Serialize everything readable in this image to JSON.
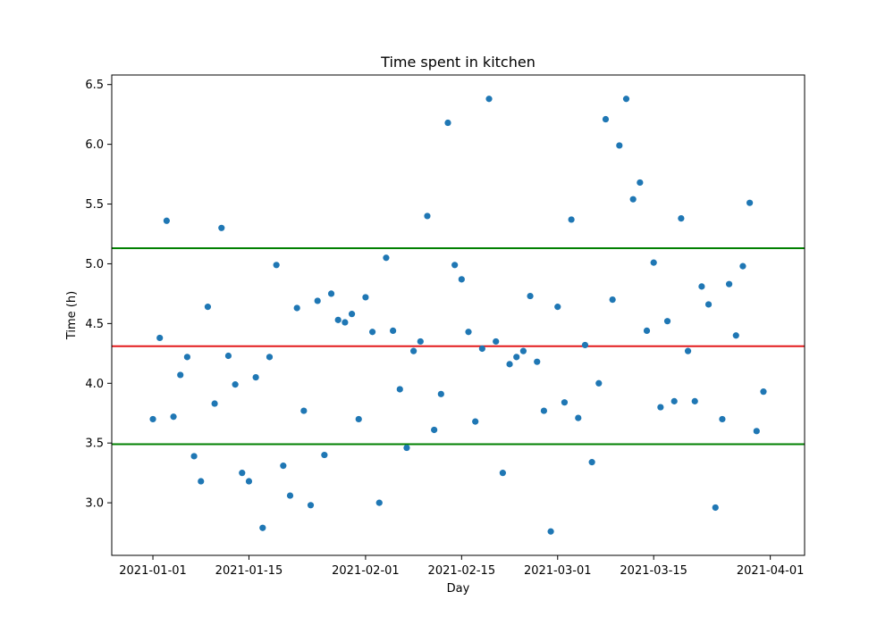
{
  "chart_data": {
    "type": "scatter",
    "title": "Time spent in kitchen",
    "xlabel": "Day",
    "ylabel": "Time (h)",
    "x_axis_type": "date",
    "xlim": [
      "2020-12-26",
      "2021-04-06"
    ],
    "ylim": [
      2.56,
      6.58
    ],
    "x_ticks": [
      "2021-01-01",
      "2021-01-15",
      "2021-02-01",
      "2021-02-15",
      "2021-03-01",
      "2021-03-15",
      "2021-04-01"
    ],
    "x_tick_labels": [
      "2021-01-01",
      "2021-01-15",
      "2021-02-01",
      "2021-02-15",
      "2021-03-01",
      "2021-03-15",
      "2021-04-01"
    ],
    "y_ticks": [
      3.0,
      3.5,
      4.0,
      4.5,
      5.0,
      5.5,
      6.0,
      6.5
    ],
    "y_tick_labels": [
      "3.0",
      "3.5",
      "4.0",
      "4.5",
      "5.0",
      "5.5",
      "6.0",
      "6.5"
    ],
    "grid": false,
    "colors": {
      "points": "#1f77b4",
      "mean_line": "#d62728",
      "bound_lines": "#008000"
    },
    "horizontal_lines": [
      {
        "y": 5.13,
        "color": "#008000"
      },
      {
        "y": 4.31,
        "color": "#e31a1c"
      },
      {
        "y": 3.49,
        "color": "#008000"
      }
    ],
    "series": [
      {
        "x": [
          "2021-01-01",
          "2021-01-02",
          "2021-01-03",
          "2021-01-04",
          "2021-01-05",
          "2021-01-06",
          "2021-01-07",
          "2021-01-08",
          "2021-01-09",
          "2021-01-10",
          "2021-01-11",
          "2021-01-12",
          "2021-01-13",
          "2021-01-14",
          "2021-01-15",
          "2021-01-16",
          "2021-01-17",
          "2021-01-18",
          "2021-01-19",
          "2021-01-20",
          "2021-01-21",
          "2021-01-22",
          "2021-01-23",
          "2021-01-24",
          "2021-01-25",
          "2021-01-26",
          "2021-01-27",
          "2021-01-28",
          "2021-01-29",
          "2021-01-30",
          "2021-01-31",
          "2021-02-01",
          "2021-02-02",
          "2021-02-03",
          "2021-02-04",
          "2021-02-05",
          "2021-02-06",
          "2021-02-07",
          "2021-02-08",
          "2021-02-09",
          "2021-02-10",
          "2021-02-11",
          "2021-02-12",
          "2021-02-13",
          "2021-02-14",
          "2021-02-15",
          "2021-02-16",
          "2021-02-17",
          "2021-02-18",
          "2021-02-19",
          "2021-02-20",
          "2021-02-21",
          "2021-02-22",
          "2021-02-23",
          "2021-02-24",
          "2021-02-25",
          "2021-02-26",
          "2021-02-27",
          "2021-02-28",
          "2021-03-01",
          "2021-03-02",
          "2021-03-03",
          "2021-03-04",
          "2021-03-05",
          "2021-03-06",
          "2021-03-07",
          "2021-03-08",
          "2021-03-09",
          "2021-03-10",
          "2021-03-11",
          "2021-03-12",
          "2021-03-13",
          "2021-03-14",
          "2021-03-15",
          "2021-03-16",
          "2021-03-17",
          "2021-03-18",
          "2021-03-19",
          "2021-03-20",
          "2021-03-21",
          "2021-03-22",
          "2021-03-23",
          "2021-03-24",
          "2021-03-25",
          "2021-03-26",
          "2021-03-27",
          "2021-03-28",
          "2021-03-29",
          "2021-03-30",
          "2021-03-31"
        ],
        "y": [
          3.7,
          4.38,
          5.36,
          3.72,
          4.07,
          4.22,
          3.39,
          3.18,
          4.64,
          3.83,
          5.3,
          4.23,
          3.99,
          3.25,
          3.18,
          4.05,
          2.79,
          4.22,
          4.99,
          3.31,
          3.06,
          4.63,
          3.77,
          2.98,
          4.69,
          3.4,
          4.75,
          4.53,
          4.51,
          4.58,
          3.7,
          4.72,
          4.43,
          3.0,
          5.05,
          4.44,
          3.95,
          3.46,
          4.27,
          4.35,
          5.4,
          3.61,
          3.91,
          6.18,
          4.99,
          4.87,
          4.43,
          3.68,
          4.29,
          6.38,
          4.35,
          3.25,
          4.16,
          4.22,
          4.27,
          4.73,
          4.18,
          3.77,
          2.76,
          4.64,
          3.84,
          5.37,
          3.71,
          4.32,
          3.34,
          4.0,
          6.21,
          4.7,
          5.99,
          6.38,
          5.54,
          5.68,
          4.44,
          5.01,
          3.8,
          4.52,
          3.85,
          5.38,
          4.27,
          3.85,
          4.81,
          4.66,
          2.96,
          3.7,
          4.83,
          4.4,
          4.98,
          5.51,
          3.6,
          3.93
        ]
      }
    ]
  }
}
